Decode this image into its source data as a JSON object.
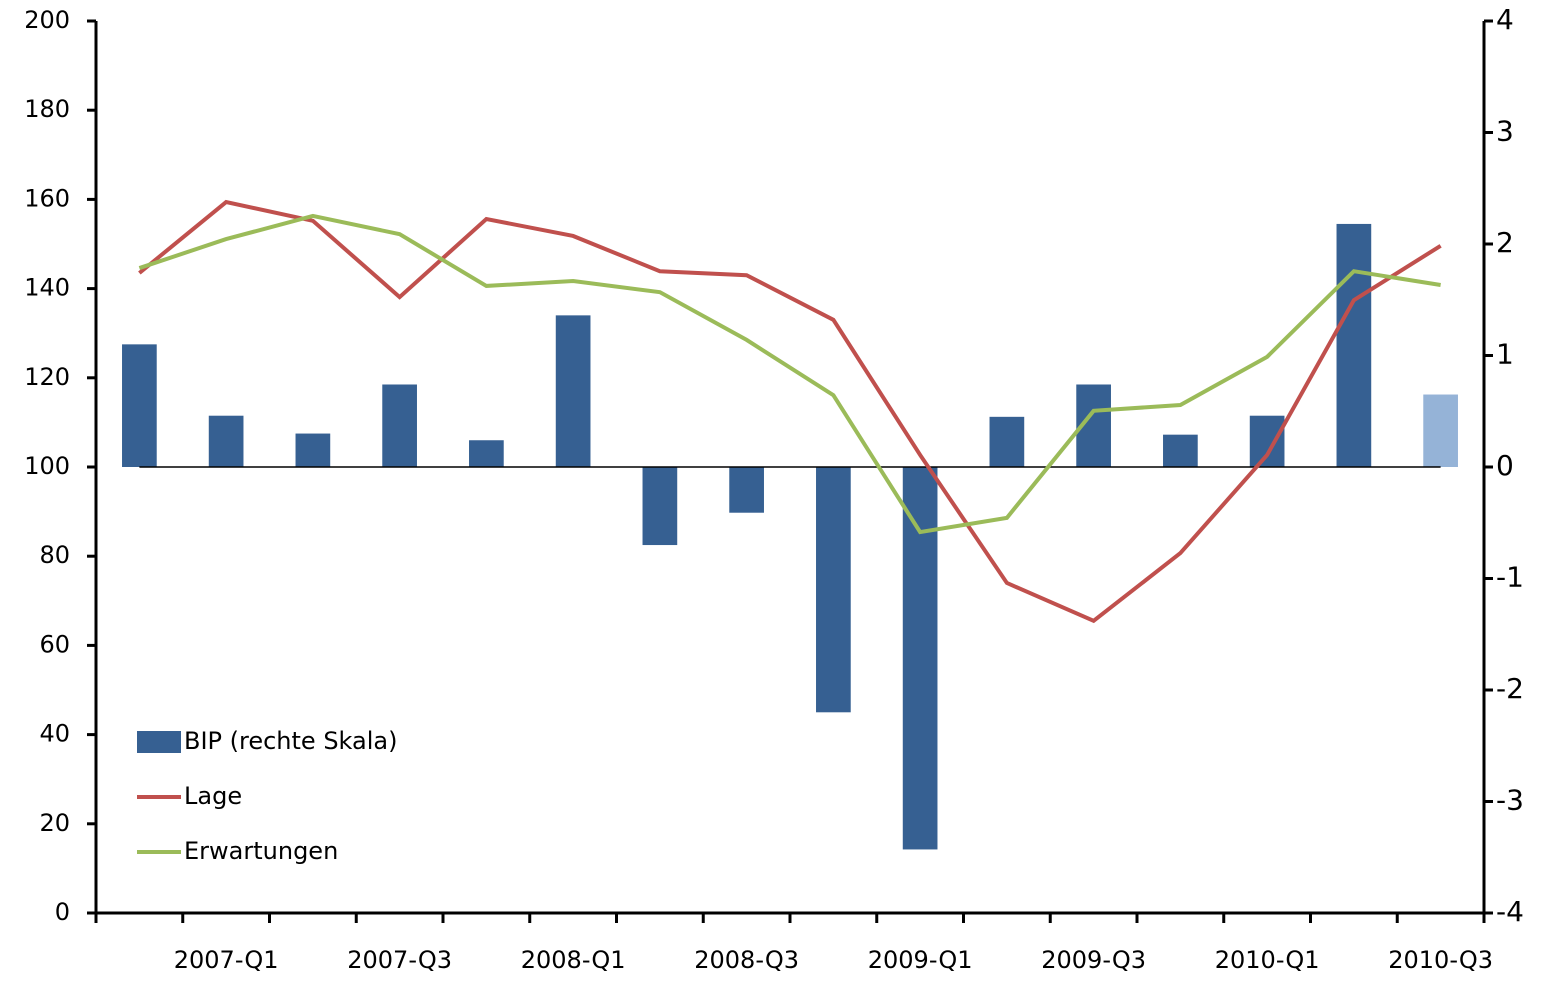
{
  "chart_data": {
    "type": "bar-line",
    "categories": [
      null,
      "2007-Q1",
      null,
      "2007-Q3",
      null,
      "2008-Q1",
      null,
      "2008-Q3",
      null,
      "2009-Q1",
      null,
      "2009-Q3",
      null,
      "2010-Q1",
      null,
      "2010-Q3"
    ],
    "series": [
      {
        "name": "BIP (rechte Skala)",
        "type": "bar",
        "axis": "y2",
        "color": "#366092",
        "colors": [
          "#366092",
          "#366092",
          "#366092",
          "#366092",
          "#366092",
          "#366092",
          "#366092",
          "#366092",
          "#366092",
          "#366092",
          "#366092",
          "#366092",
          "#366092",
          "#366092",
          "#366092",
          "#95b3d7"
        ],
        "values": [
          1.1,
          0.46,
          0.3,
          0.74,
          0.24,
          1.36,
          -0.7,
          -0.41,
          -2.2,
          -3.43,
          0.45,
          0.74,
          0.29,
          0.46,
          2.18,
          0.65
        ]
      },
      {
        "name": "Lage",
        "type": "line",
        "color": "#c0504d",
        "values": [
          143.5,
          159.4,
          155.2,
          138.1,
          155.6,
          151.8,
          143.9,
          143.0,
          133.0,
          102.7,
          74.0,
          65.5,
          80.7,
          102.7,
          137.4,
          149.6
        ]
      },
      {
        "name": "Erwartungen",
        "type": "line",
        "color": "#9bbb59",
        "values": [
          144.6,
          151.1,
          156.3,
          152.2,
          140.6,
          141.7,
          139.2,
          128.5,
          116.1,
          85.4,
          88.6,
          112.6,
          113.9,
          124.7,
          143.9,
          140.8
        ]
      }
    ],
    "ylim": [
      0,
      200
    ],
    "yticks": [
      0,
      20,
      40,
      60,
      80,
      100,
      120,
      140,
      160,
      180,
      200
    ],
    "y2lim": [
      -4,
      4
    ],
    "y2ticks": [
      -4,
      -3,
      -2,
      -1,
      0,
      1,
      2,
      3,
      4
    ],
    "legend": "lower-left",
    "grid": false
  }
}
